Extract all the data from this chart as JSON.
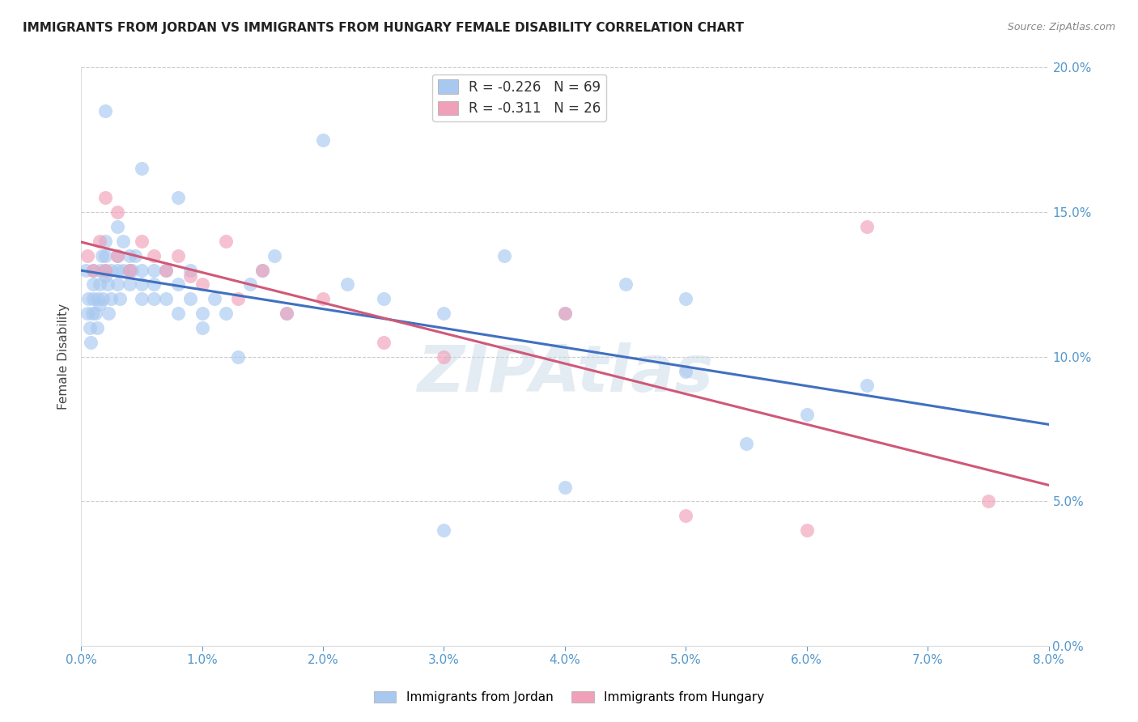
{
  "title": "IMMIGRANTS FROM JORDAN VS IMMIGRANTS FROM HUNGARY FEMALE DISABILITY CORRELATION CHART",
  "source": "Source: ZipAtlas.com",
  "ylabel": "Female Disability",
  "xmin": 0.0,
  "xmax": 0.08,
  "ymin": 0.0,
  "ymax": 0.2,
  "xticks": [
    0.0,
    0.01,
    0.02,
    0.03,
    0.04,
    0.05,
    0.06,
    0.07,
    0.08
  ],
  "yticks": [
    0.0,
    0.05,
    0.1,
    0.15,
    0.2
  ],
  "jordan_color": "#A8C8F0",
  "hungary_color": "#F0A0B8",
  "jordan_R": -0.226,
  "jordan_N": 69,
  "hungary_R": -0.311,
  "hungary_N": 26,
  "jordan_line_color": "#4070C0",
  "hungary_line_color": "#D05878",
  "jordan_x": [
    0.0004,
    0.0005,
    0.0006,
    0.0007,
    0.0008,
    0.0009,
    0.001,
    0.001,
    0.001,
    0.0012,
    0.0013,
    0.0014,
    0.0015,
    0.0015,
    0.0016,
    0.0017,
    0.0018,
    0.002,
    0.002,
    0.002,
    0.002,
    0.0022,
    0.0023,
    0.0025,
    0.0025,
    0.003,
    0.003,
    0.003,
    0.003,
    0.0032,
    0.0035,
    0.0035,
    0.004,
    0.004,
    0.004,
    0.0042,
    0.0045,
    0.005,
    0.005,
    0.005,
    0.006,
    0.006,
    0.006,
    0.007,
    0.007,
    0.008,
    0.008,
    0.009,
    0.009,
    0.01,
    0.01,
    0.011,
    0.012,
    0.013,
    0.014,
    0.015,
    0.016,
    0.017,
    0.02,
    0.022,
    0.025,
    0.03,
    0.035,
    0.04,
    0.045,
    0.05,
    0.055,
    0.06,
    0.065
  ],
  "jordan_y": [
    0.13,
    0.115,
    0.12,
    0.11,
    0.105,
    0.115,
    0.125,
    0.13,
    0.12,
    0.115,
    0.11,
    0.12,
    0.125,
    0.118,
    0.13,
    0.135,
    0.12,
    0.14,
    0.135,
    0.128,
    0.13,
    0.125,
    0.115,
    0.12,
    0.13,
    0.145,
    0.135,
    0.13,
    0.125,
    0.12,
    0.14,
    0.13,
    0.135,
    0.13,
    0.125,
    0.13,
    0.135,
    0.125,
    0.12,
    0.13,
    0.13,
    0.125,
    0.12,
    0.13,
    0.12,
    0.115,
    0.125,
    0.13,
    0.12,
    0.11,
    0.115,
    0.12,
    0.115,
    0.1,
    0.125,
    0.13,
    0.135,
    0.115,
    0.175,
    0.125,
    0.12,
    0.115,
    0.135,
    0.115,
    0.125,
    0.12,
    0.07,
    0.08,
    0.09
  ],
  "jordan_y_outliers": [
    0.185,
    0.165,
    0.155,
    0.095,
    0.04,
    0.055
  ],
  "jordan_x_outliers": [
    0.002,
    0.005,
    0.008,
    0.05,
    0.03,
    0.04
  ],
  "hungary_x": [
    0.0005,
    0.001,
    0.0015,
    0.002,
    0.002,
    0.003,
    0.003,
    0.004,
    0.005,
    0.006,
    0.007,
    0.008,
    0.009,
    0.01,
    0.012,
    0.013,
    0.015,
    0.017,
    0.02,
    0.025,
    0.03,
    0.04,
    0.05,
    0.06,
    0.065,
    0.075
  ],
  "hungary_y": [
    0.135,
    0.13,
    0.14,
    0.155,
    0.13,
    0.15,
    0.135,
    0.13,
    0.14,
    0.135,
    0.13,
    0.135,
    0.128,
    0.125,
    0.14,
    0.12,
    0.13,
    0.115,
    0.12,
    0.105,
    0.1,
    0.115,
    0.045,
    0.04,
    0.145,
    0.05
  ],
  "background_color": "#FFFFFF",
  "grid_color": "#CCCCCC",
  "title_fontsize": 11,
  "tick_label_color": "#5599CC",
  "watermark": "ZIPAtlas"
}
